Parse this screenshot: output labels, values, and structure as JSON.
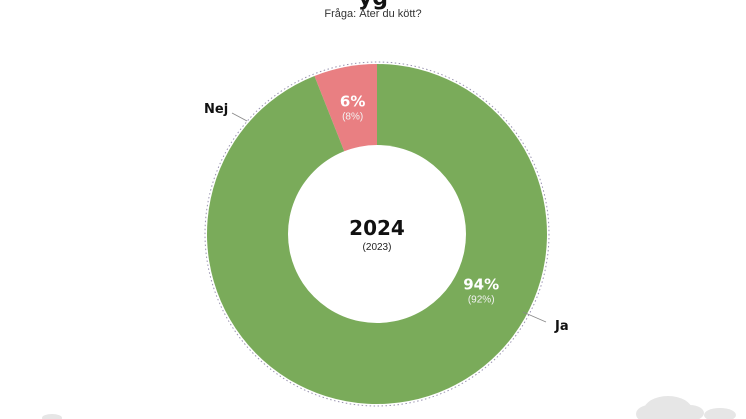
{
  "header": {
    "title_fragment": "yg",
    "subtitle": "Fråga: Äter du kött?"
  },
  "colors": {
    "ja": "#7aab5a",
    "nej": "#e97f82",
    "ring": "#9a94b0",
    "leader": "#888888"
  },
  "chart_data": {
    "type": "pie",
    "title": "",
    "subtitle": "Fråga: Äter du kött?",
    "center_label": "2024",
    "center_sublabel": "(2023)",
    "categories": [
      "Nej",
      "Ja"
    ],
    "series": [
      {
        "name": "2024",
        "values": [
          6,
          94
        ]
      },
      {
        "name": "2023",
        "values": [
          8,
          92
        ]
      }
    ],
    "value_labels": {
      "Nej": {
        "main": "6%",
        "previous": "(8%)"
      },
      "Ja": {
        "main": "94%",
        "previous": "(92%)"
      }
    },
    "legend": "none"
  }
}
